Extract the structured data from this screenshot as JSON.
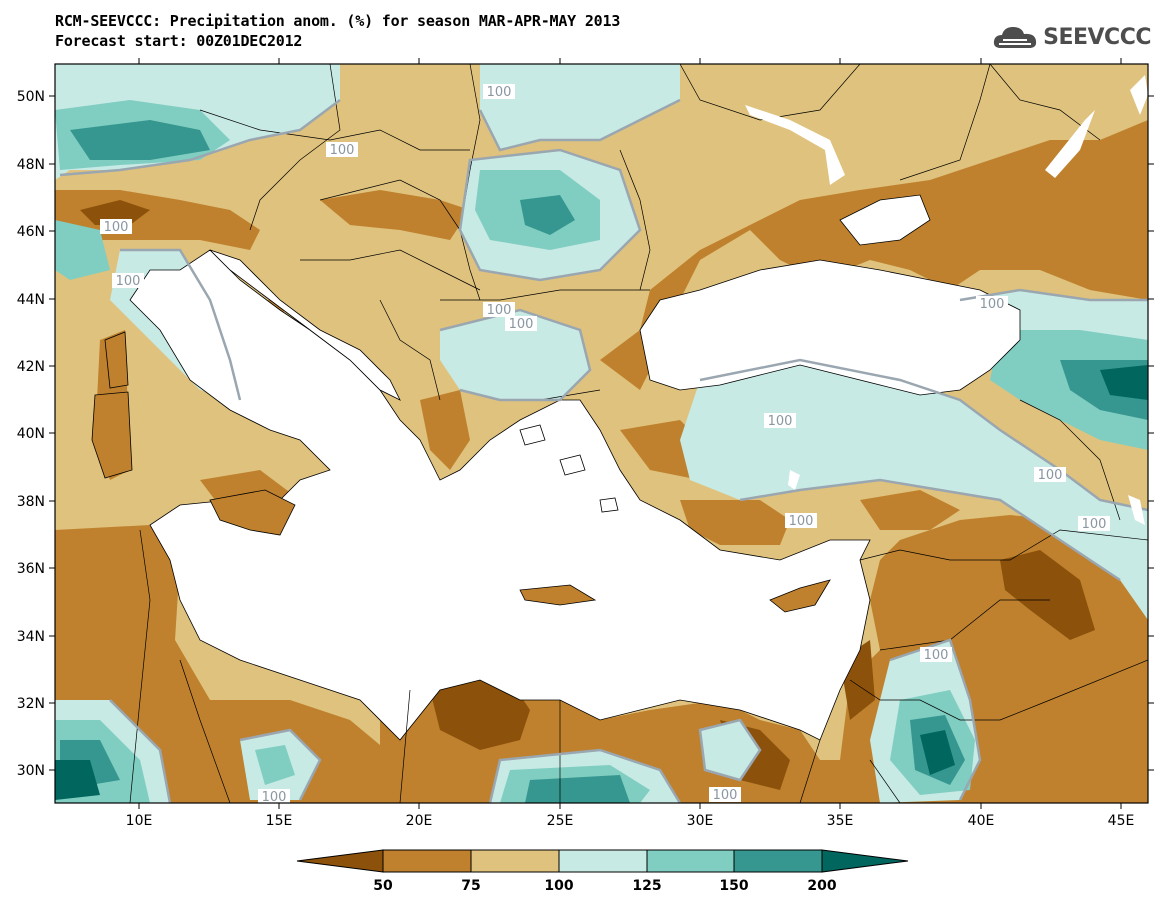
{
  "title": {
    "line1": "RCM-SEEVCCC: Precipitation anom. (%) for season MAR-APR-MAY 2013",
    "line2": "Forecast start: 00Z01DEC2012"
  },
  "logo": {
    "text": "SEEVCCC",
    "icon": "cloud-icon"
  },
  "map": {
    "lat_labels": [
      "50N",
      "48N",
      "46N",
      "44N",
      "42N",
      "40N",
      "38N",
      "36N",
      "34N",
      "32N",
      "30N"
    ],
    "lon_labels": [
      "10E",
      "15E",
      "20E",
      "25E",
      "30E",
      "35E",
      "40E",
      "45E"
    ],
    "contour_label": "100",
    "colors": {
      "lt50": "#8c510a",
      "c50_75": "#bf812d",
      "c75_100": "#dfc27d",
      "c100_125": "#c7eae5",
      "c125_150": "#80cdc1",
      "c150_200": "#35978f",
      "gt200": "#01665e",
      "sea": "#ffffff"
    }
  },
  "colorbar": {
    "labels": [
      "50",
      "75",
      "100",
      "125",
      "150",
      "200"
    ]
  }
}
